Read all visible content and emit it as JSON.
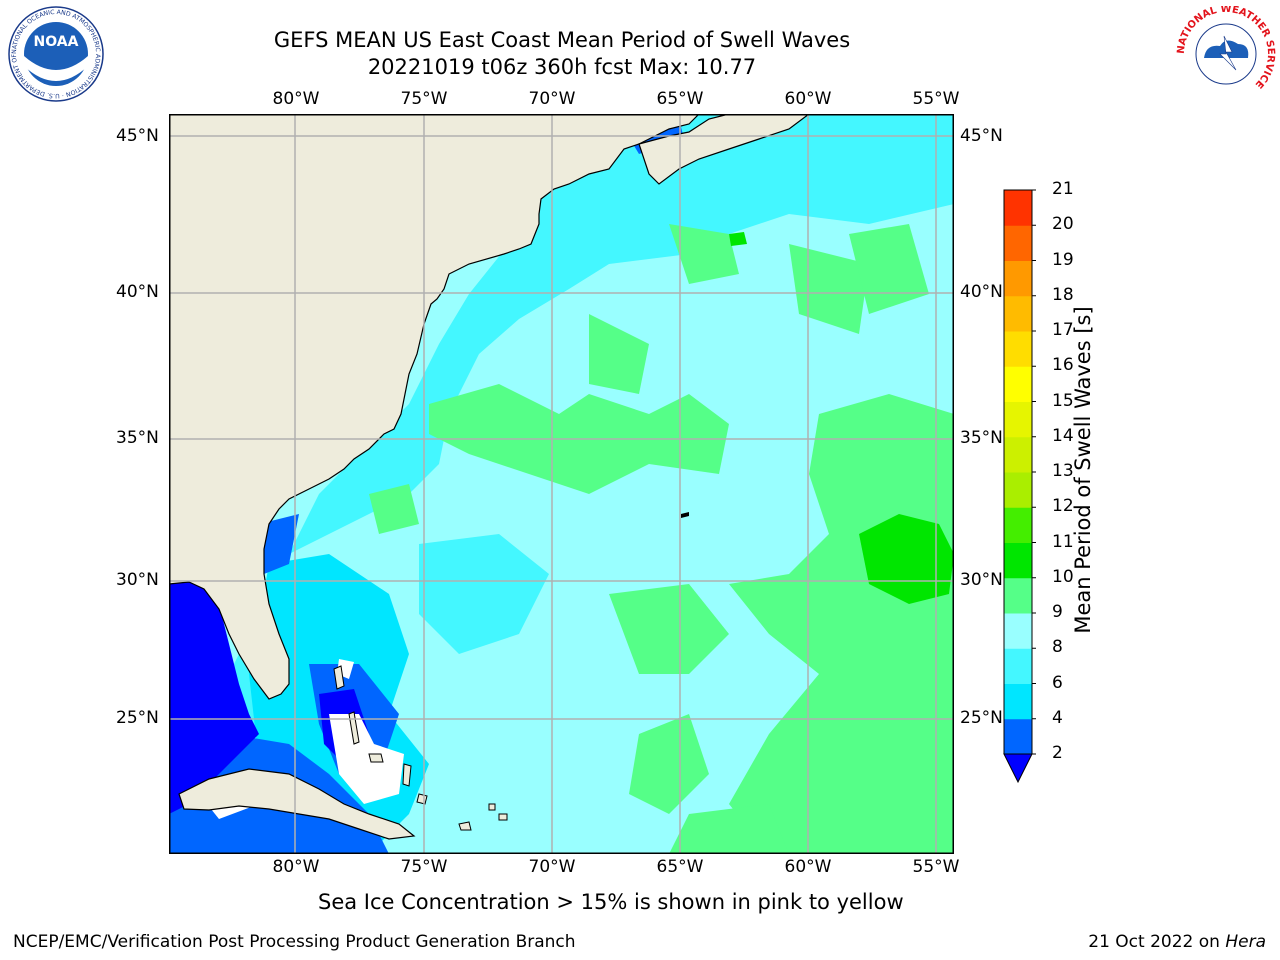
{
  "title_line1": "GEFS MEAN US East Coast Mean Period of Swell Waves",
  "title_line2": "20221019 t06z 360h fcst   Max: 10.77",
  "lon_labels": [
    "80°W",
    "75°W",
    "70°W",
    "65°W",
    "60°W",
    "55°W"
  ],
  "lat_labels": [
    "45°N",
    "40°N",
    "35°N",
    "30°N",
    "25°N"
  ],
  "colorbar": {
    "label": "Mean Period of Swell Waves [s]",
    "ticks": [
      "2",
      "4",
      "6",
      "8",
      "9",
      "10",
      "11",
      "12",
      "13",
      "14",
      "15",
      "16",
      "17",
      "18",
      "19",
      "20",
      "21"
    ],
    "colors": [
      "#0066ff",
      "#00e6ff",
      "#44f7ff",
      "#99ffff",
      "#55ff88",
      "#00e600",
      "#44ee00",
      "#aaee00",
      "#ccf000",
      "#e6f500",
      "#ffff00",
      "#ffdd00",
      "#ffbb00",
      "#ff9900",
      "#ff6600",
      "#ff3300",
      "#ff0000"
    ],
    "under_color": "#0000ff"
  },
  "colors": {
    "land": "#eeecdc",
    "grid": "#b0b0b0",
    "coast": "#000000"
  },
  "footer_note": "Sea Ice Concentration > 15% is shown in pink to yellow",
  "footer_left": "NCEP/EMC/Verification Post Processing Product Generation Branch",
  "footer_right_date": "21 Oct 2022 on ",
  "footer_right_machine": "Hera",
  "logos": {
    "noaa_text": "NOAA",
    "noaa_ring": "NATIONAL OCEANIC AND ATMOSPHERIC ADMINISTRATION · U.S. DEPARTMENT OF COMMERCE",
    "nws_ring": "NATIONAL WEATHER SERVICE"
  }
}
